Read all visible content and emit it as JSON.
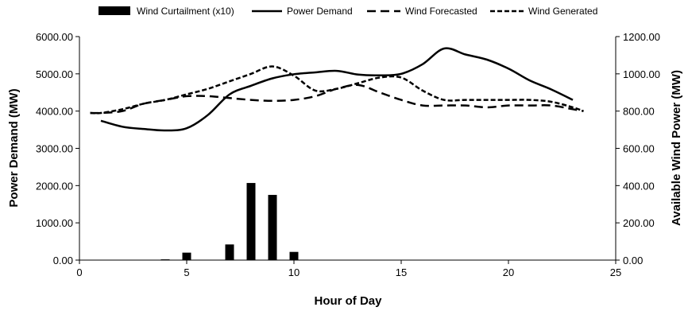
{
  "chart_data": {
    "type": "bar",
    "xlabel": "Hour of Day",
    "ylabel": "Power Demand (MW)",
    "y2label": "Available Wind Power (MW)",
    "xlim": [
      0,
      25
    ],
    "xticks": [
      0,
      5,
      10,
      15,
      20,
      25
    ],
    "ylim": [
      0,
      6000
    ],
    "yticks": [
      "0.00",
      "1000.00",
      "2000.00",
      "3000.00",
      "4000.00",
      "5000.00",
      "6000.00"
    ],
    "y2lim": [
      0,
      1200
    ],
    "y2ticks": [
      "0.00",
      "200.00",
      "400.00",
      "600.00",
      "800.00",
      "1000.00",
      "1200.00"
    ],
    "grid": false,
    "legend_position": "top",
    "series": [
      {
        "name": "Wind Curtailment (x10)",
        "type": "bar",
        "axis": "left",
        "x": [
          4,
          5,
          7,
          8,
          9,
          10
        ],
        "values": [
          20,
          200,
          420,
          2070,
          1750,
          220
        ]
      },
      {
        "name": "Power Demand",
        "type": "line",
        "style": "solid",
        "axis": "left",
        "x": [
          1,
          2,
          3,
          4,
          5,
          6,
          7,
          8,
          9,
          10,
          11,
          12,
          13,
          14,
          15,
          16,
          17,
          18,
          19,
          20,
          21,
          22,
          23
        ],
        "values": [
          3740,
          3580,
          3520,
          3480,
          3540,
          3900,
          4450,
          4680,
          4880,
          4990,
          5040,
          5080,
          4980,
          4960,
          5000,
          5260,
          5680,
          5520,
          5380,
          5140,
          4820,
          4580,
          4300
        ]
      },
      {
        "name": "Wind Forecasted",
        "type": "line",
        "style": "long-dash",
        "axis": "right",
        "x": [
          0.5,
          1,
          2,
          3,
          4,
          5,
          6,
          7,
          8,
          9,
          10,
          11,
          12,
          13,
          14,
          15,
          16,
          17,
          18,
          19,
          20,
          21,
          22,
          23,
          23.5
        ],
        "values": [
          790,
          790,
          800,
          840,
          860,
          880,
          880,
          870,
          860,
          855,
          860,
          880,
          920,
          940,
          900,
          860,
          830,
          830,
          830,
          820,
          830,
          830,
          830,
          810,
          800
        ]
      },
      {
        "name": "Wind Generated",
        "type": "line",
        "style": "short-dash",
        "axis": "right",
        "x": [
          0.5,
          1,
          2,
          3,
          4,
          5,
          6,
          7,
          8,
          9,
          10,
          11,
          12,
          13,
          14,
          15,
          16,
          17,
          18,
          19,
          20,
          21,
          22,
          23,
          23.5
        ],
        "values": [
          790,
          790,
          810,
          840,
          860,
          890,
          920,
          960,
          1000,
          1040,
          990,
          910,
          920,
          950,
          980,
          980,
          910,
          860,
          860,
          860,
          860,
          860,
          850,
          820,
          800
        ]
      }
    ]
  }
}
